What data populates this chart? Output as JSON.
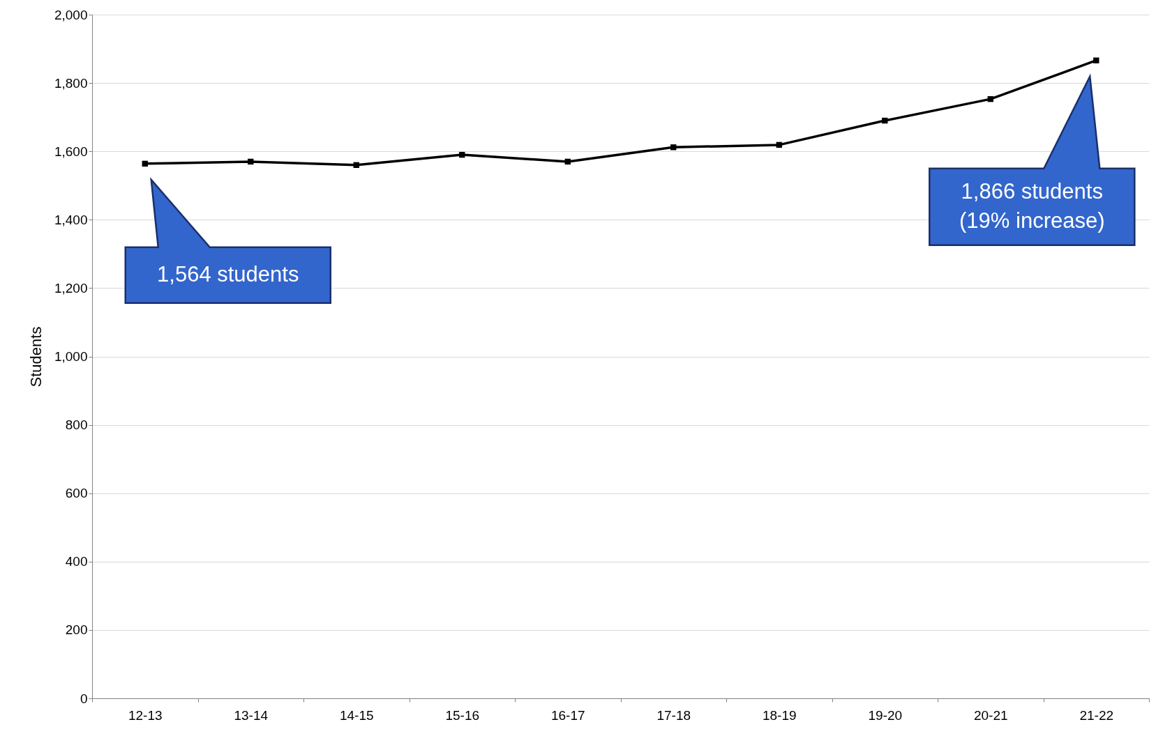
{
  "chart_data": {
    "type": "line",
    "ylabel": "Students",
    "categories": [
      "12-13",
      "13-14",
      "14-15",
      "15-16",
      "16-17",
      "17-18",
      "18-19",
      "19-20",
      "20-21",
      "21-22"
    ],
    "series": [
      {
        "color": "#000000",
        "values": [
          1564,
          1570,
          1560,
          1590,
          1570,
          1612,
          1619,
          1690,
          1753,
          1866
        ]
      }
    ],
    "ylim": [
      0,
      2000
    ],
    "yticks": [
      {
        "value": 0,
        "label": "0"
      },
      {
        "value": 200,
        "label": "200"
      },
      {
        "value": 400,
        "label": "400"
      },
      {
        "value": 600,
        "label": "600"
      },
      {
        "value": 800,
        "label": "800"
      },
      {
        "value": 1000,
        "label": "1,000"
      },
      {
        "value": 1200,
        "label": "1,200"
      },
      {
        "value": 1400,
        "label": "1,400"
      },
      {
        "value": 1600,
        "label": "1,600"
      },
      {
        "value": 1800,
        "label": "1,800"
      },
      {
        "value": 2000,
        "label": "2,000"
      }
    ],
    "grid": "y",
    "marker": "square",
    "line_style": "solid",
    "annotations": [
      "1,564 students",
      "1,866 students\n(19% increase)"
    ]
  }
}
